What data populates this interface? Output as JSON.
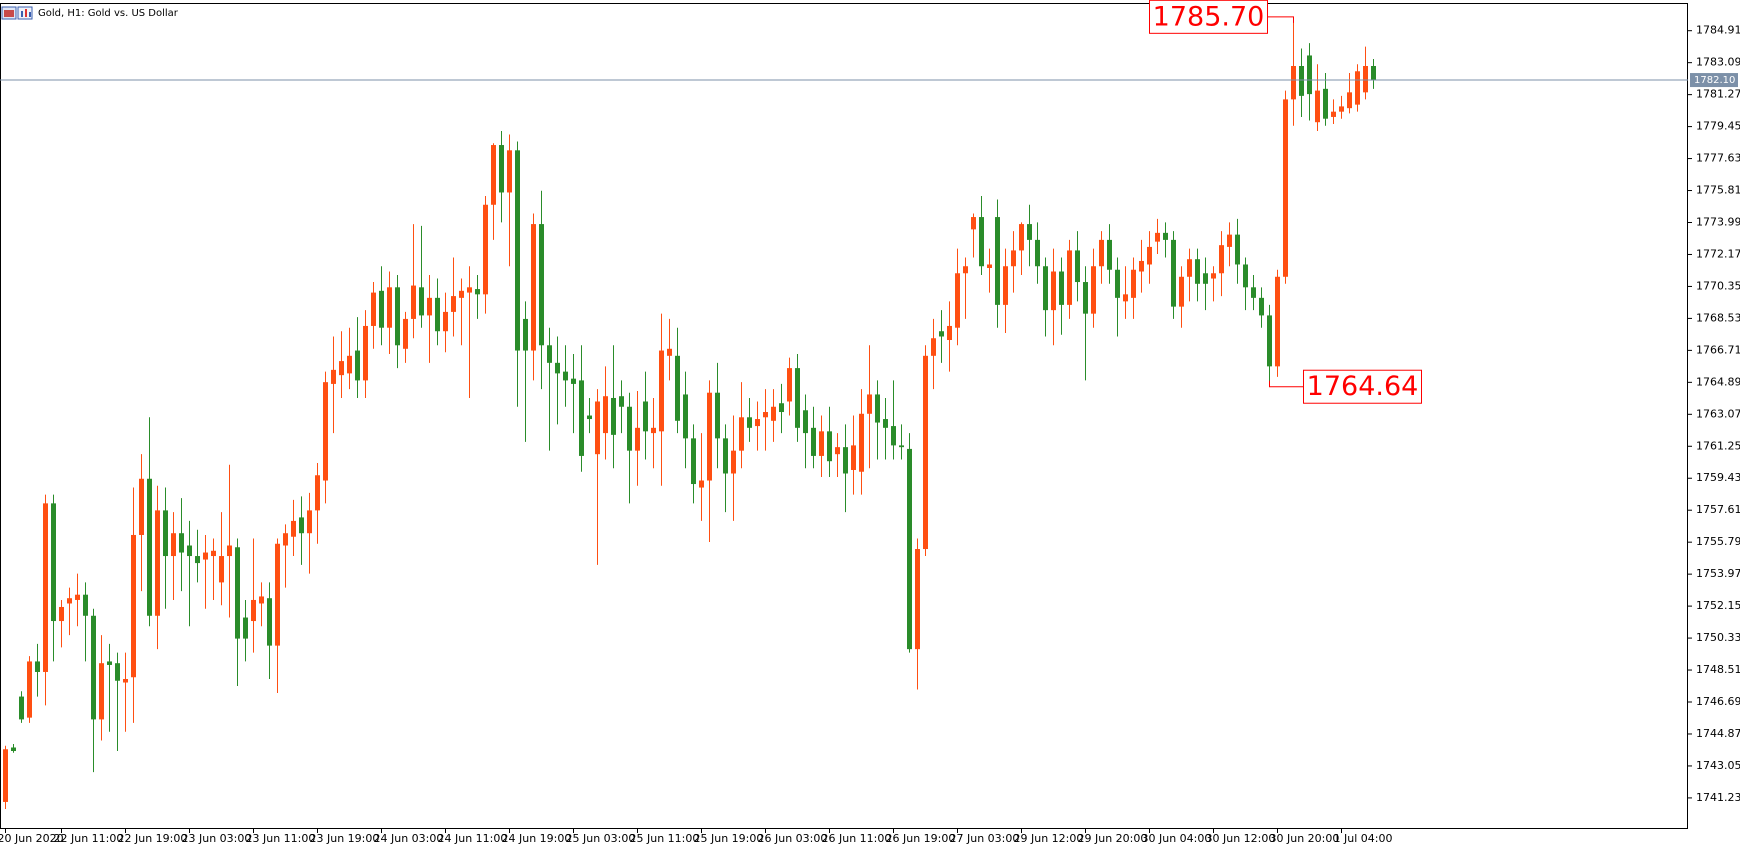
{
  "chart_data": {
    "type": "candlestick",
    "title": "Gold, H1:  Gold vs. US Dollar",
    "up_color": "#ff4f12",
    "down_color": "#2a8c2a",
    "ylim": [
      1739.46,
      1786.43
    ],
    "yticks": [
      1741.23,
      1743.05,
      1744.87,
      1746.69,
      1748.51,
      1750.33,
      1752.15,
      1753.97,
      1755.79,
      1757.61,
      1759.43,
      1761.25,
      1763.07,
      1764.89,
      1766.71,
      1768.53,
      1770.35,
      1772.17,
      1773.99,
      1775.81,
      1777.63,
      1779.45,
      1781.27,
      1783.09,
      1784.91
    ],
    "current_price": {
      "value": 1782.1,
      "label": "1782.10"
    },
    "annotations": [
      {
        "value": 1785.7,
        "label": "1785.70"
      },
      {
        "value": 1764.64,
        "label": "1764.64"
      }
    ],
    "categories": [
      "20 Jun 2020",
      null,
      null,
      null,
      null,
      null,
      null,
      "22 Jun 11:00",
      null,
      null,
      null,
      null,
      null,
      null,
      null,
      "22 Jun 19:00",
      null,
      null,
      null,
      null,
      null,
      null,
      null,
      "23 Jun 03:00",
      null,
      null,
      null,
      null,
      null,
      null,
      null,
      "23 Jun 11:00",
      null,
      null,
      null,
      null,
      null,
      null,
      null,
      "23 Jun 19:00",
      null,
      null,
      null,
      null,
      null,
      null,
      null,
      "24 Jun 03:00",
      null,
      null,
      null,
      null,
      null,
      null,
      null,
      "24 Jun 11:00",
      null,
      null,
      null,
      null,
      null,
      null,
      null,
      "24 Jun 19:00",
      null,
      null,
      null,
      null,
      null,
      null,
      null,
      "25 Jun 03:00",
      null,
      null,
      null,
      null,
      null,
      null,
      null,
      "25 Jun 11:00",
      null,
      null,
      null,
      null,
      null,
      null,
      null,
      "25 Jun 19:00",
      null,
      null,
      null,
      null,
      null,
      null,
      null,
      "26 Jun 03:00",
      null,
      null,
      null,
      null,
      null,
      null,
      null,
      "26 Jun 11:00",
      null,
      null,
      null,
      null,
      null,
      null,
      null,
      "26 Jun 19:00",
      null,
      null,
      null,
      null,
      null,
      null,
      null,
      "27 Jun 03:00",
      null,
      null,
      null,
      null,
      null,
      null,
      null,
      "29 Jun 12:00",
      null,
      null,
      null,
      null,
      null,
      null,
      null,
      "29 Jun 20:00",
      null,
      null,
      null,
      null,
      null,
      null,
      null,
      "30 Jun 04:00",
      null,
      null,
      null,
      null,
      null,
      null,
      null,
      "30 Jun 12:00",
      null,
      null,
      null,
      null,
      null,
      null,
      null,
      "30 Jun 20:00",
      null,
      null,
      null,
      null,
      null,
      null,
      null,
      "1 Jul 04:00",
      null,
      null,
      null,
      null
    ],
    "open": [
      1741.0,
      1744.1,
      1747.0,
      1745.8,
      1749.0,
      1748.4,
      1758.0,
      1751.3,
      1752.3,
      1752.5,
      1752.8,
      1751.6,
      1745.7,
      1749.0,
      1748.9,
      1747.8,
      1748.1,
      1756.2,
      1759.4,
      1751.6,
      1757.6,
      1755.0,
      1756.3,
      1755.6,
      1755.0,
      1754.8,
      1755.0,
      1753.5,
      1755.0,
      1755.5,
      1751.5,
      1751.3,
      1752.3,
      1752.6,
      1749.9,
      1755.6,
      1756.1,
      1757.2,
      1756.3,
      1757.6,
      1759.3,
      1764.8,
      1765.3,
      1765.4,
      1766.7,
      1765.0,
      1768.1,
      1770.1,
      1768.0,
      1770.3,
      1766.8,
      1768.5,
      1770.3,
      1768.7,
      1769.7,
      1767.8,
      1768.9,
      1769.7,
      1770.0,
      1770.2,
      1769.9,
      1775.0,
      1778.4,
      1775.7,
      1778.1,
      1768.5,
      1766.7,
      1773.9,
      1767.0,
      1766.0,
      1765.5,
      1765.1,
      1765.0,
      1763.0,
      1760.8,
      1762.0,
      1764.0,
      1764.1,
      1763.5,
      1761.0,
      1763.8,
      1762.0,
      1762.1,
      1766.4,
      1766.4,
      1764.2,
      1761.7,
      1758.9,
      1759.3,
      1764.3,
      1761.7,
      1759.7,
      1761.0,
      1762.9,
      1762.4,
      1762.9,
      1762.7,
      1763.7,
      1763.8,
      1765.7,
      1763.3,
      1762.3,
      1760.7,
      1762.1,
      1760.8,
      1761.2,
      1759.9,
      1759.8,
      1763.1,
      1764.2,
      1762.8,
      1762.4,
      1761.3,
      1761.1,
      1749.7,
      1755.4,
      1766.4,
      1767.8,
      1767.3,
      1768.0,
      1771.1,
      1773.6,
      1774.3,
      1771.4,
      1774.3,
      1769.3,
      1771.5,
      1772.4,
      1773.9,
      1773.0,
      1771.5,
      1769.0,
      1771.2,
      1769.3,
      1772.4,
      1770.6,
      1768.8,
      1771.5,
      1773.0,
      1771.3,
      1769.5,
      1769.7,
      1771.2,
      1771.6,
      1772.9,
      1773.4,
      1773.0,
      1769.2,
      1770.9,
      1771.9,
      1771.1,
      1770.8,
      1771.1,
      1772.6,
      1773.3,
      1771.6,
      1770.3,
      1769.7,
      1768.7,
      1765.8,
      1770.9,
      1781.0,
      1782.9,
      1783.5,
      1779.7,
      1781.6,
      1780.0,
      1780.3,
      1780.5,
      1780.7,
      1781.4,
      1782.9
    ],
    "high": [
      1744.2,
      1744.3,
      1747.3,
      1749.3,
      1750.0,
      1758.5,
      1758.5,
      1752.5,
      1753.2,
      1754.0,
      1753.5,
      1752.0,
      1750.5,
      1750.0,
      1749.5,
      1749.5,
      1758.9,
      1760.8,
      1762.9,
      1759.0,
      1758.9,
      1757.5,
      1758.3,
      1757.0,
      1756.5,
      1756.2,
      1756.0,
      1757.5,
      1760.2,
      1756.0,
      1752.5,
      1756.0,
      1753.5,
      1753.5,
      1756.0,
      1756.8,
      1758.2,
      1758.4,
      1758.6,
      1760.3,
      1765.5,
      1767.5,
      1767.8,
      1768.0,
      1768.6,
      1769.0,
      1770.6,
      1771.5,
      1771.2,
      1771.0,
      1768.9,
      1773.9,
      1773.8,
      1771.0,
      1770.8,
      1770.0,
      1772.0,
      1770.8,
      1771.5,
      1771.0,
      1775.5,
      1778.5,
      1779.2,
      1779.0,
      1778.6,
      1769.5,
      1774.5,
      1775.8,
      1768.0,
      1767.5,
      1767.0,
      1766.5,
      1767.0,
      1764.0,
      1764.5,
      1765.8,
      1767.0,
      1765.0,
      1764.3,
      1764.4,
      1765.5,
      1764.0,
      1768.8,
      1768.5,
      1768.0,
      1765.5,
      1762.5,
      1762.0,
      1765.0,
      1766.0,
      1762.5,
      1763.0,
      1764.9,
      1764.0,
      1763.8,
      1764.5,
      1764.5,
      1764.8,
      1766.3,
      1766.5,
      1764.2,
      1763.5,
      1763.0,
      1763.5,
      1762.0,
      1762.5,
      1763.0,
      1764.5,
      1767.0,
      1765.0,
      1764.0,
      1765.0,
      1762.5,
      1762.0,
      1756.0,
      1767.0,
      1768.5,
      1769.0,
      1769.5,
      1772.5,
      1772.0,
      1774.5,
      1775.5,
      1772.5,
      1775.3,
      1772.5,
      1773.5,
      1774.0,
      1775.0,
      1774.0,
      1772.0,
      1772.5,
      1772.0,
      1773.0,
      1773.5,
      1771.5,
      1772.5,
      1773.5,
      1773.9,
      1772.0,
      1771.5,
      1772.0,
      1773.0,
      1773.5,
      1774.2,
      1774.0,
      1773.5,
      1771.5,
      1772.5,
      1772.5,
      1772.0,
      1771.5,
      1773.5,
      1774.0,
      1774.2,
      1772.0,
      1771.0,
      1770.3,
      1769.3,
      1771.3,
      1781.5,
      1785.7,
      1783.9,
      1784.2,
      1783.0,
      1782.5,
      1781.0,
      1781.2,
      1782.5,
      1783.0,
      1784.0,
      1783.3
    ],
    "low": [
      1740.6,
      1743.8,
      1745.5,
      1745.5,
      1747.0,
      1746.5,
      1749.0,
      1749.8,
      1750.5,
      1751.0,
      1749.0,
      1742.7,
      1744.5,
      1745.0,
      1743.9,
      1745.0,
      1745.5,
      1753.0,
      1751.0,
      1749.7,
      1752.0,
      1752.5,
      1753.0,
      1751.0,
      1753.5,
      1752.0,
      1752.5,
      1752.2,
      1751.5,
      1747.6,
      1749.0,
      1749.5,
      1751.0,
      1748.0,
      1747.2,
      1753.2,
      1755.0,
      1754.5,
      1754.0,
      1755.7,
      1758.0,
      1762.0,
      1764.0,
      1764.5,
      1764.0,
      1764.0,
      1766.8,
      1767.0,
      1766.5,
      1765.7,
      1766.0,
      1767.4,
      1768.0,
      1766.0,
      1767.0,
      1766.6,
      1767.5,
      1767.0,
      1764.0,
      1768.5,
      1768.8,
      1773.0,
      1774.0,
      1771.5,
      1763.5,
      1761.5,
      1765.0,
      1764.5,
      1761.0,
      1762.5,
      1763.5,
      1762.0,
      1759.8,
      1762.0,
      1754.5,
      1760.5,
      1760.0,
      1762.0,
      1758.0,
      1759.0,
      1760.5,
      1760.0,
      1759.0,
      1765.0,
      1762.0,
      1760.0,
      1758.0,
      1757.0,
      1755.8,
      1760.0,
      1757.5,
      1757.0,
      1760.0,
      1761.5,
      1761.0,
      1761.0,
      1761.5,
      1762.0,
      1763.0,
      1761.5,
      1760.0,
      1760.0,
      1759.5,
      1759.5,
      1759.5,
      1757.5,
      1758.5,
      1758.5,
      1760.0,
      1760.5,
      1760.5,
      1760.5,
      1760.5,
      1749.5,
      1747.4,
      1755.0,
      1764.5,
      1766.0,
      1765.5,
      1767.0,
      1768.5,
      1772.0,
      1771.0,
      1770.0,
      1768.0,
      1767.7,
      1770.0,
      1771.0,
      1771.5,
      1770.5,
      1767.5,
      1767.0,
      1767.6,
      1768.5,
      1769.5,
      1765.0,
      1768.0,
      1770.5,
      1770.5,
      1767.5,
      1768.5,
      1768.5,
      1770.0,
      1770.5,
      1772.2,
      1772.0,
      1768.5,
      1768.0,
      1769.5,
      1769.5,
      1769.0,
      1769.5,
      1769.8,
      1771.5,
      1770.5,
      1769.0,
      1769.0,
      1768.0,
      1764.64,
      1765.2,
      1770.5,
      1779.5,
      1780.0,
      1779.8,
      1779.2,
      1779.5,
      1779.6,
      1779.9,
      1780.2,
      1780.3,
      1781.0,
      1781.6
    ],
    "close": [
      1744.0,
      1743.9,
      1745.7,
      1749.0,
      1748.4,
      1758.0,
      1751.3,
      1752.1,
      1752.6,
      1752.8,
      1751.6,
      1745.7,
      1748.9,
      1748.8,
      1747.9,
      1748.0,
      1756.2,
      1759.4,
      1751.6,
      1757.6,
      1755.0,
      1756.3,
      1755.2,
      1755.0,
      1754.6,
      1755.2,
      1755.3,
      1755.0,
      1755.6,
      1750.3,
      1750.3,
      1752.5,
      1752.7,
      1749.9,
      1755.7,
      1756.3,
      1757.0,
      1756.3,
      1757.6,
      1759.6,
      1764.9,
      1765.6,
      1766.1,
      1766.4,
      1765.0,
      1768.1,
      1770.0,
      1768.0,
      1770.3,
      1767.0,
      1768.5,
      1770.4,
      1768.7,
      1769.7,
      1767.8,
      1768.9,
      1769.8,
      1770.1,
      1770.3,
      1769.9,
      1775.0,
      1778.4,
      1775.7,
      1778.1,
      1766.7,
      1766.7,
      1773.9,
      1767.0,
      1766.0,
      1765.4,
      1765.0,
      1764.8,
      1760.7,
      1762.8,
      1763.8,
      1764.1,
      1761.9,
      1763.5,
      1761.0,
      1762.3,
      1762.1,
      1762.3,
      1766.7,
      1766.8,
      1762.7,
      1761.7,
      1759.1,
      1759.3,
      1764.3,
      1761.7,
      1759.7,
      1761.0,
      1762.9,
      1762.3,
      1762.8,
      1763.2,
      1763.5,
      1763.2,
      1765.7,
      1762.3,
      1762.0,
      1760.7,
      1762.1,
      1760.4,
      1761.2,
      1759.7,
      1761.3,
      1763.1,
      1764.2,
      1762.6,
      1762.3,
      1761.3,
      1761.2,
      1749.7,
      1755.4,
      1766.4,
      1767.4,
      1767.5,
      1768.1,
      1771.1,
      1771.5,
      1774.3,
      1771.5,
      1771.6,
      1769.3,
      1771.5,
      1772.4,
      1773.9,
      1773.0,
      1771.5,
      1769.0,
      1771.2,
      1769.3,
      1772.4,
      1770.6,
      1768.8,
      1771.5,
      1773.0,
      1771.3,
      1769.7,
      1769.9,
      1771.3,
      1771.8,
      1772.6,
      1773.4,
      1773.0,
      1769.2,
      1770.9,
      1771.9,
      1770.5,
      1770.5,
      1771.1,
      1772.7,
      1773.3,
      1771.6,
      1770.3,
      1769.7,
      1768.7,
      1765.8,
      1770.9,
      1781.0,
      1782.9,
      1781.2,
      1781.3,
      1781.5,
      1779.9,
      1780.3,
      1780.6,
      1781.4,
      1782.6,
      1782.9,
      1782.1
    ]
  }
}
